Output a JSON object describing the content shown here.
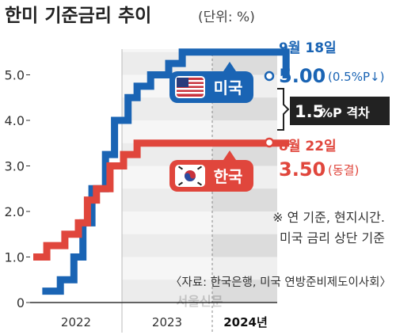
{
  "title": "한미 기준금리 추이",
  "unit": "(단위: %)",
  "chart_data": {
    "type": "line",
    "step": true,
    "ylim": [
      0,
      5.5
    ],
    "y_ticks": [
      "0",
      "1.0",
      "2.0",
      "3.0",
      "4.0",
      "5.0"
    ],
    "x_ticks": [
      "2022",
      "2023",
      "2024년"
    ],
    "series": [
      {
        "name": "미국",
        "color": "#1a64b4",
        "values": [
          [
            2022.0,
            0.25
          ],
          [
            2022.2,
            0.5
          ],
          [
            2022.35,
            1.0
          ],
          [
            2022.45,
            1.75
          ],
          [
            2022.55,
            2.5
          ],
          [
            2022.7,
            3.25
          ],
          [
            2022.8,
            4.0
          ],
          [
            2022.95,
            4.5
          ],
          [
            2023.05,
            4.75
          ],
          [
            2023.2,
            5.0
          ],
          [
            2023.4,
            5.25
          ],
          [
            2023.55,
            5.5
          ],
          [
            2024.7,
            5.0
          ]
        ]
      },
      {
        "name": "한국",
        "color": "#e0463c",
        "values": [
          [
            2021.9,
            1.0
          ],
          [
            2022.05,
            1.25
          ],
          [
            2022.25,
            1.5
          ],
          [
            2022.4,
            1.75
          ],
          [
            2022.5,
            2.25
          ],
          [
            2022.6,
            2.5
          ],
          [
            2022.75,
            3.0
          ],
          [
            2022.9,
            3.25
          ],
          [
            2023.05,
            3.5
          ],
          [
            2024.7,
            3.5
          ]
        ]
      }
    ],
    "annotations": {
      "us_date": "9월 18일",
      "us_rate": "5.00",
      "us_change": "(0.5%P↓)",
      "us_label": "미국",
      "gap_value": "1.5",
      "gap_label": "%P 격차",
      "kr_date": "8월 22일",
      "kr_rate": "3.50",
      "kr_change": "(동결)",
      "kr_label": "한국",
      "note_line1": "※ 연 기준, 현지시간.",
      "note_line2": "미국 금리 상단 기준",
      "source": "〈자료: 한국은행, 미국 연방준비제도이사회〉",
      "watermark": "서울신문"
    }
  }
}
